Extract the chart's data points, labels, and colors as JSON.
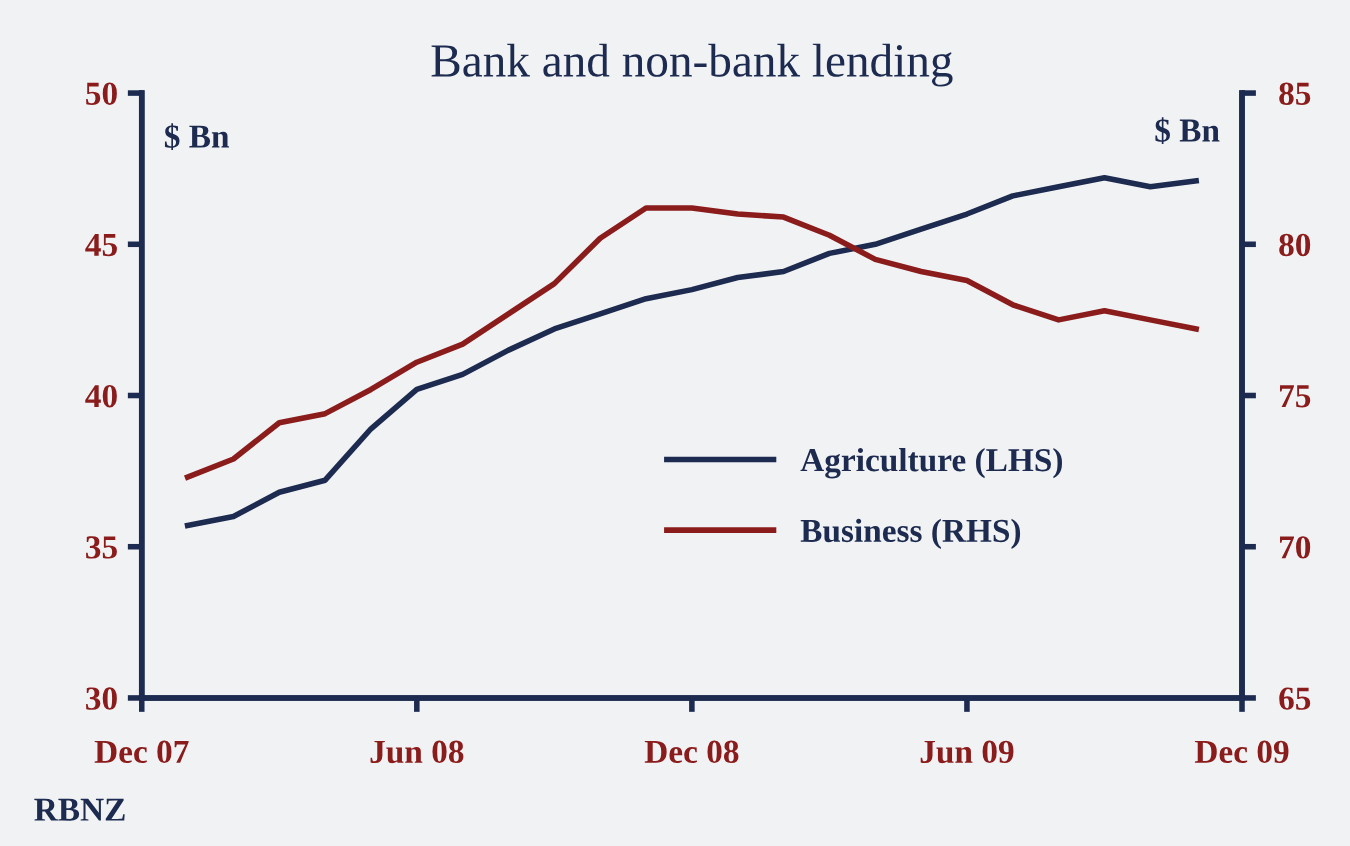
{
  "chart_data": {
    "type": "line",
    "title": "Bank and non-bank lending",
    "ylabel": "$ Bn",
    "y2label": "$ Bn",
    "x": [
      "2008-01",
      "2008-02",
      "2008-03",
      "2008-04",
      "2008-05",
      "2008-06",
      "2008-07",
      "2008-08",
      "2008-09",
      "2008-10",
      "2008-11",
      "2008-12",
      "2009-01",
      "2009-02",
      "2009-03",
      "2009-04",
      "2009-05",
      "2009-06",
      "2009-07",
      "2009-08",
      "2009-09",
      "2009-10",
      "2009-11"
    ],
    "series": [
      {
        "name": "Agriculture (LHS)",
        "color": "#1c2b4f",
        "values": [
          35.7,
          36.0,
          36.8,
          37.2,
          38.9,
          40.2,
          40.7,
          41.5,
          42.2,
          42.7,
          43.2,
          43.5,
          43.9,
          44.1,
          44.7,
          45.0,
          45.5,
          46.0,
          46.6,
          46.9,
          47.2,
          46.9,
          47.1
        ]
      },
      {
        "name": "Business (RHS)",
        "color": "#8b1c1c",
        "axis": "y2",
        "values": [
          72.3,
          72.9,
          74.1,
          74.4,
          75.2,
          76.1,
          76.7,
          77.7,
          78.7,
          80.2,
          81.2,
          81.2,
          81.0,
          80.9,
          80.3,
          79.5,
          79.1,
          78.8,
          78.0,
          77.5,
          77.8,
          77.5,
          77.2
        ]
      }
    ],
    "xlim": [
      "2007-12",
      "2009-12"
    ],
    "xticks": [
      {
        "value": "2007-12",
        "label": "Dec 07"
      },
      {
        "value": "2008-06",
        "label": "Jun 08"
      },
      {
        "value": "2008-12",
        "label": "Dec 08"
      },
      {
        "value": "2009-06",
        "label": "Jun 09"
      },
      {
        "value": "2009-12",
        "label": "Dec 09"
      }
    ],
    "ylim": [
      30,
      50
    ],
    "yticks": [
      30,
      35,
      40,
      45,
      50
    ],
    "y2lim": [
      65,
      85
    ],
    "y2ticks": [
      65,
      70,
      75,
      80,
      85
    ],
    "grid": false,
    "legend": "right",
    "marker": "none",
    "line_style": "solid",
    "annotations": [
      "RBNZ"
    ]
  }
}
